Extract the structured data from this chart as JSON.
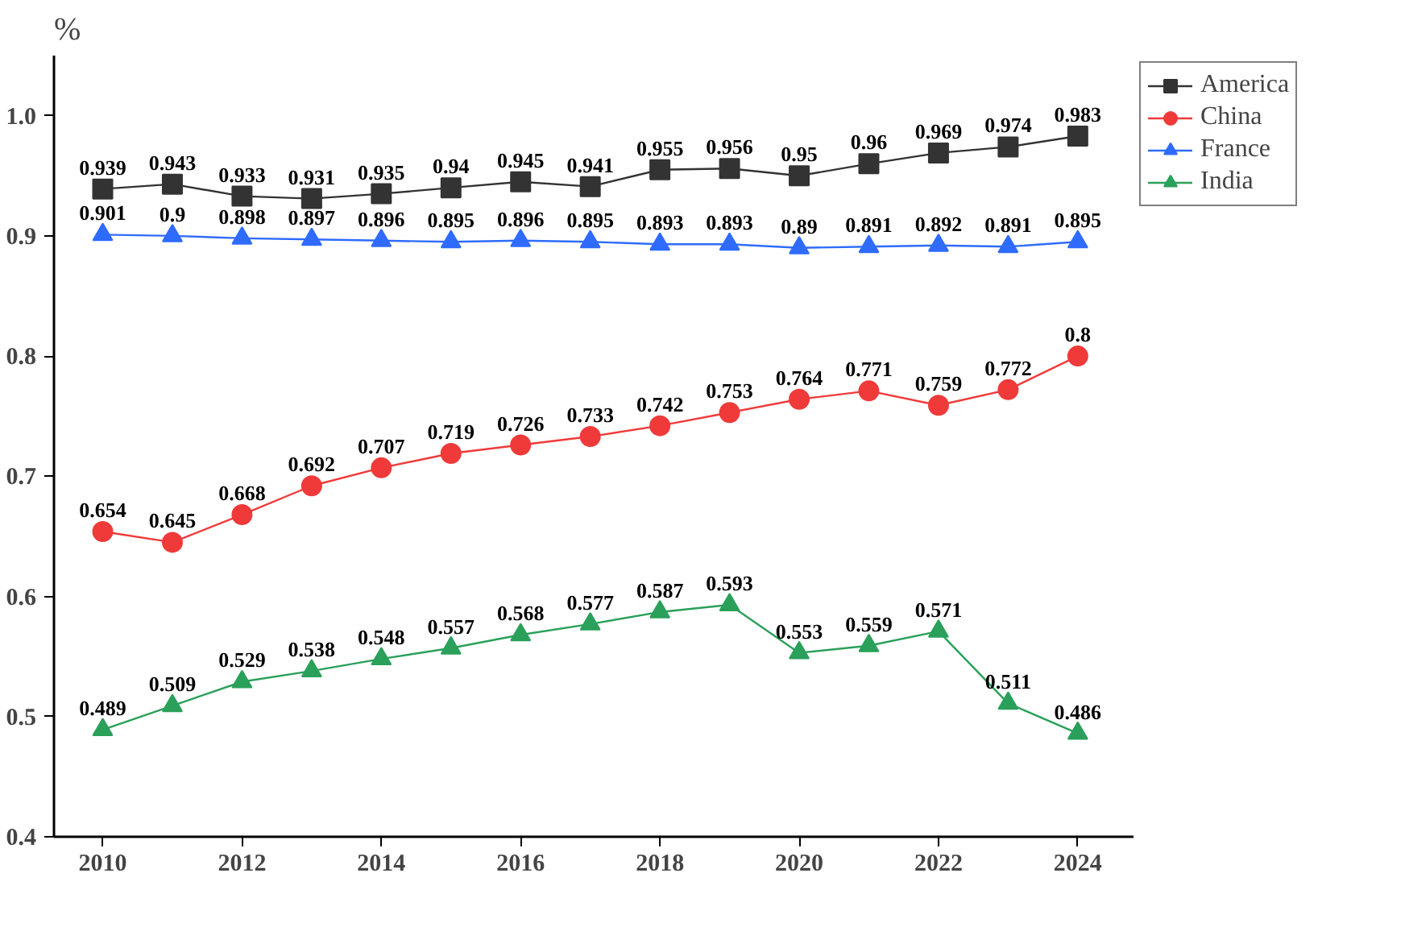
{
  "chart_data": {
    "type": "line",
    "ylabel": "%",
    "x": [
      2010,
      2011,
      2012,
      2013,
      2014,
      2015,
      2016,
      2017,
      2018,
      2019,
      2020,
      2021,
      2022,
      2023,
      2024
    ],
    "series": [
      {
        "name": "America",
        "color": "#333333",
        "marker": "square",
        "values": [
          0.939,
          0.943,
          0.933,
          0.931,
          0.935,
          0.94,
          0.945,
          0.941,
          0.955,
          0.956,
          0.95,
          0.96,
          0.969,
          0.974,
          0.983
        ]
      },
      {
        "name": "China",
        "color": "#f03a3a",
        "marker": "circle",
        "values": [
          0.654,
          0.645,
          0.668,
          0.692,
          0.707,
          0.719,
          0.726,
          0.733,
          0.742,
          0.753,
          0.764,
          0.771,
          0.759,
          0.772,
          0.8
        ]
      },
      {
        "name": "France",
        "color": "#2f6bff",
        "marker": "triangle",
        "values": [
          0.901,
          0.9,
          0.898,
          0.897,
          0.896,
          0.895,
          0.896,
          0.895,
          0.893,
          0.893,
          0.89,
          0.891,
          0.892,
          0.891,
          0.895
        ]
      },
      {
        "name": "India",
        "color": "#2aa05a",
        "marker": "triangle",
        "values": [
          0.489,
          0.509,
          0.529,
          0.538,
          0.548,
          0.557,
          0.568,
          0.577,
          0.587,
          0.593,
          0.553,
          0.559,
          0.571,
          0.511,
          0.486
        ]
      }
    ],
    "xlim": [
      2009.3,
      2024.8
    ],
    "ylim": [
      0.4,
      1.05
    ],
    "xticks": [
      2010,
      2012,
      2014,
      2016,
      2018,
      2020,
      2022,
      2024
    ],
    "yticks": [
      0.4,
      0.5,
      0.6,
      0.7,
      0.8,
      0.9,
      {
        "value": 1.0,
        "label": "1.0"
      }
    ],
    "data_labels": true,
    "legend": "top right",
    "grid": false,
    "line_style": "solid"
  }
}
